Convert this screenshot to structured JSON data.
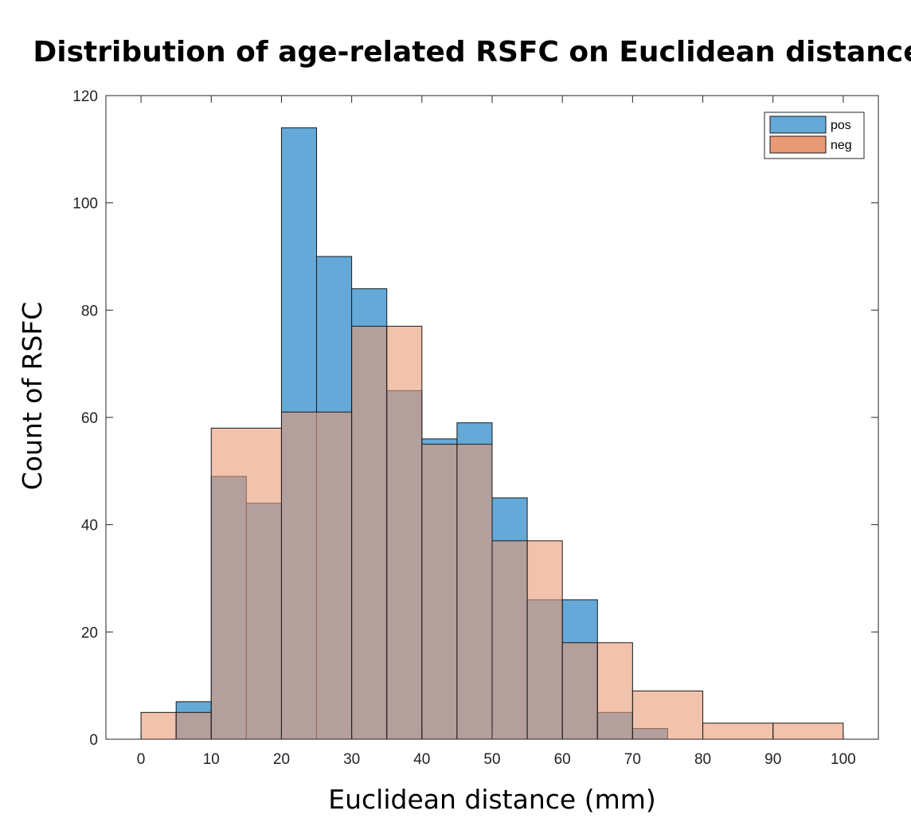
{
  "chart_data": {
    "type": "bar",
    "title": "Distribution of age-related RSFC on Euclidean distance",
    "xlabel": "Euclidean distance (mm)",
    "ylabel": "Count of RSFC",
    "xlim": [
      -5,
      105
    ],
    "ylim": [
      0,
      120
    ],
    "xticks": [
      0,
      10,
      20,
      30,
      40,
      50,
      60,
      70,
      80,
      90,
      100
    ],
    "yticks": [
      0,
      20,
      40,
      60,
      80,
      100,
      120
    ],
    "legend_position": "top-right",
    "grid": false,
    "series": [
      {
        "name": "pos",
        "color": "#64A9D8",
        "bins": [
          {
            "x0": 5,
            "x1": 10,
            "value": 7
          },
          {
            "x0": 10,
            "x1": 15,
            "value": 49
          },
          {
            "x0": 15,
            "x1": 20,
            "value": 44
          },
          {
            "x0": 20,
            "x1": 25,
            "value": 114
          },
          {
            "x0": 25,
            "x1": 30,
            "value": 90
          },
          {
            "x0": 30,
            "x1": 35,
            "value": 84
          },
          {
            "x0": 35,
            "x1": 40,
            "value": 65
          },
          {
            "x0": 40,
            "x1": 45,
            "value": 56
          },
          {
            "x0": 45,
            "x1": 50,
            "value": 59
          },
          {
            "x0": 50,
            "x1": 55,
            "value": 45
          },
          {
            "x0": 55,
            "x1": 60,
            "value": 26
          },
          {
            "x0": 60,
            "x1": 65,
            "value": 26
          },
          {
            "x0": 65,
            "x1": 70,
            "value": 5
          },
          {
            "x0": 70,
            "x1": 75,
            "value": 2
          }
        ]
      },
      {
        "name": "neg",
        "color": "#E89A75",
        "bins": [
          {
            "x0": 0,
            "x1": 5,
            "value": 5
          },
          {
            "x0": 5,
            "x1": 10,
            "value": 5
          },
          {
            "x0": 10,
            "x1": 20,
            "value": 58
          },
          {
            "x0": 20,
            "x1": 30,
            "value": 61
          },
          {
            "x0": 30,
            "x1": 35,
            "value": 77
          },
          {
            "x0": 35,
            "x1": 40,
            "value": 77
          },
          {
            "x0": 40,
            "x1": 45,
            "value": 55
          },
          {
            "x0": 45,
            "x1": 50,
            "value": 55
          },
          {
            "x0": 50,
            "x1": 55,
            "value": 37
          },
          {
            "x0": 55,
            "x1": 60,
            "value": 37
          },
          {
            "x0": 60,
            "x1": 65,
            "value": 18
          },
          {
            "x0": 65,
            "x1": 70,
            "value": 18
          },
          {
            "x0": 70,
            "x1": 80,
            "value": 9
          },
          {
            "x0": 80,
            "x1": 90,
            "value": 3
          },
          {
            "x0": 90,
            "x1": 100,
            "value": 3
          }
        ]
      }
    ]
  }
}
